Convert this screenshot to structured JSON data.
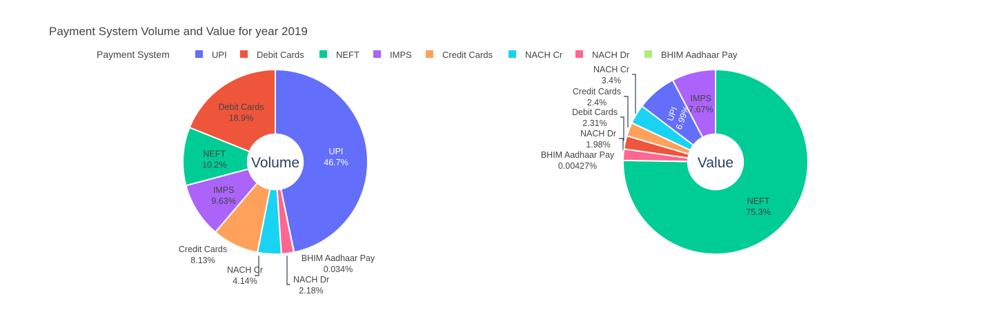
{
  "title": "Payment System Volume and Value for year 2019",
  "legend": {
    "title": "Payment System",
    "placement": "top",
    "items": [
      {
        "label": "UPI",
        "color": "#636efa"
      },
      {
        "label": "Debit Cards",
        "color": "#ef553b"
      },
      {
        "label": "NEFT",
        "color": "#00cc96"
      },
      {
        "label": "IMPS",
        "color": "#ab63fa"
      },
      {
        "label": "Credit Cards",
        "color": "#ffa15a"
      },
      {
        "label": "NACH Cr",
        "color": "#19d3f3"
      },
      {
        "label": "NACH Dr",
        "color": "#ff6692"
      },
      {
        "label": "BHIM Aadhaar Pay",
        "color": "#b6e880"
      }
    ]
  },
  "chart_data": [
    {
      "type": "pie",
      "hole_label": "Volume",
      "slices": [
        {
          "label": "UPI",
          "value": 46.7,
          "text": "46.7%",
          "color": "#636efa"
        },
        {
          "label": "BHIM Aadhaar Pay",
          "value": 0.034,
          "text": "0.034%",
          "color": "#b6e880"
        },
        {
          "label": "NACH Dr",
          "value": 2.18,
          "text": "2.18%",
          "color": "#ff6692"
        },
        {
          "label": "NACH Cr",
          "value": 4.14,
          "text": "4.14%",
          "color": "#19d3f3"
        },
        {
          "label": "Credit Cards",
          "value": 8.13,
          "text": "8.13%",
          "color": "#ffa15a"
        },
        {
          "label": "IMPS",
          "value": 9.63,
          "text": "9.63%",
          "color": "#ab63fa"
        },
        {
          "label": "NEFT",
          "value": 10.2,
          "text": "10.2%",
          "color": "#00cc96"
        },
        {
          "label": "Debit Cards",
          "value": 18.9,
          "text": "18.9%",
          "color": "#ef553b"
        }
      ]
    },
    {
      "type": "pie",
      "hole_label": "Value",
      "slices": [
        {
          "label": "NEFT",
          "value": 75.3,
          "text": "75.3%",
          "color": "#00cc96"
        },
        {
          "label": "BHIM Aadhaar Pay",
          "value": 0.00427,
          "text": "0.00427%",
          "color": "#b6e880"
        },
        {
          "label": "NACH Dr",
          "value": 1.98,
          "text": "1.98%",
          "color": "#ff6692"
        },
        {
          "label": "Debit Cards",
          "value": 2.31,
          "text": "2.31%",
          "color": "#ef553b"
        },
        {
          "label": "Credit Cards",
          "value": 2.4,
          "text": "2.4%",
          "color": "#ffa15a"
        },
        {
          "label": "NACH Cr",
          "value": 3.4,
          "text": "3.4%",
          "color": "#19d3f3"
        },
        {
          "label": "UPI",
          "value": 6.99,
          "text": "6.99%",
          "color": "#636efa"
        },
        {
          "label": "IMPS",
          "value": 7.67,
          "text": "7.67%",
          "color": "#ab63fa"
        }
      ]
    }
  ]
}
